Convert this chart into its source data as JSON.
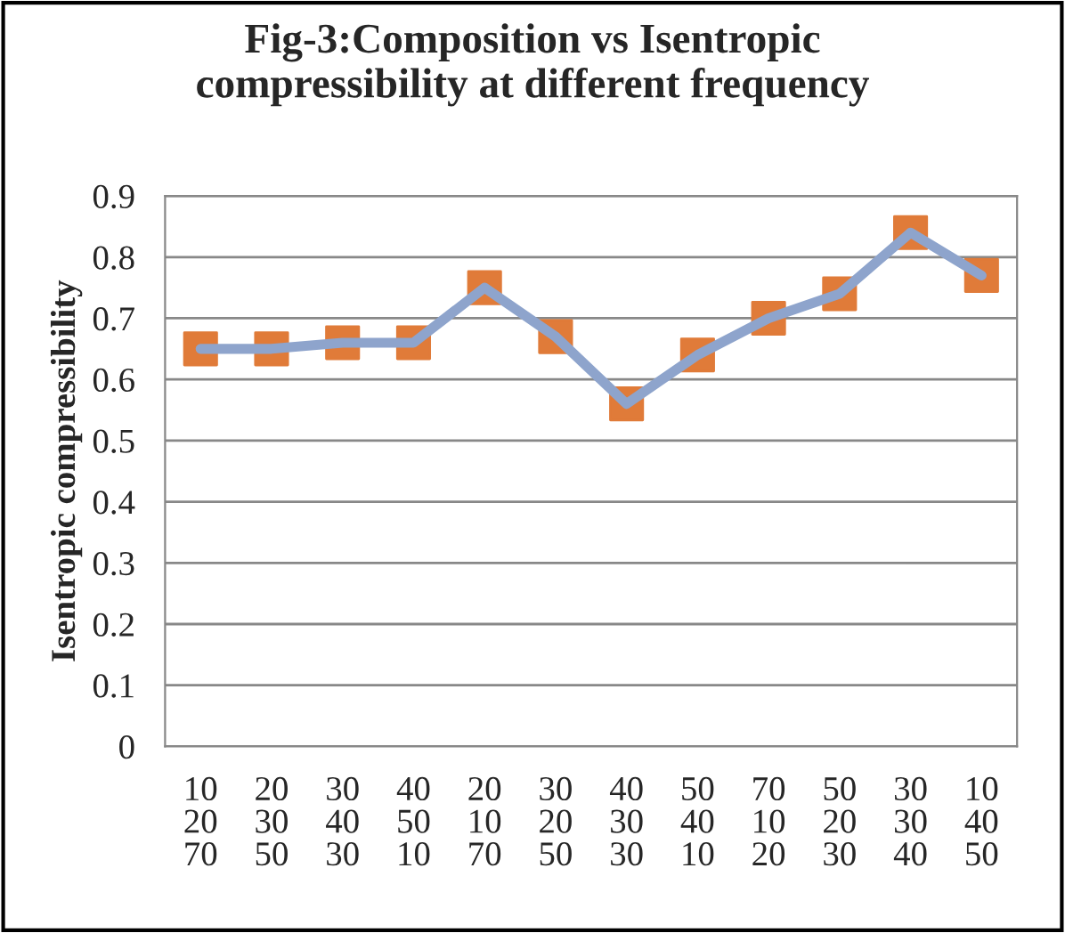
{
  "chart_data": {
    "type": "line",
    "title": "Fig-3:Composition vs Isentropic\ncompressibility at different frequency",
    "ylabel": "Isentropic compressibility",
    "categories": [
      "10\n20\n70",
      "20\n30\n50",
      "30\n40\n30",
      "40\n50\n10",
      "20\n10\n70",
      "30\n20\n50",
      "40\n30\n30",
      "50\n40\n10",
      "70\n10\n20",
      "50\n20\n30",
      "30\n30\n40",
      "10\n40\n50"
    ],
    "series": [
      {
        "type": "scatter",
        "color": "#e07b39",
        "marker": "square",
        "values": [
          0.65,
          0.65,
          0.66,
          0.66,
          0.75,
          0.67,
          0.56,
          0.64,
          0.7,
          0.74,
          0.84,
          0.77
        ]
      },
      {
        "color": "#8ea4cc",
        "values": [
          0.65,
          0.65,
          0.66,
          0.66,
          0.75,
          0.67,
          0.56,
          0.64,
          0.7,
          0.74,
          0.84,
          0.77
        ]
      }
    ],
    "ylim": [
      0,
      0.9
    ],
    "yticks": [
      0,
      0.1,
      0.2,
      0.3,
      0.4,
      0.5,
      0.6,
      0.7,
      0.8,
      0.9
    ],
    "grid": "y",
    "legend": false
  }
}
